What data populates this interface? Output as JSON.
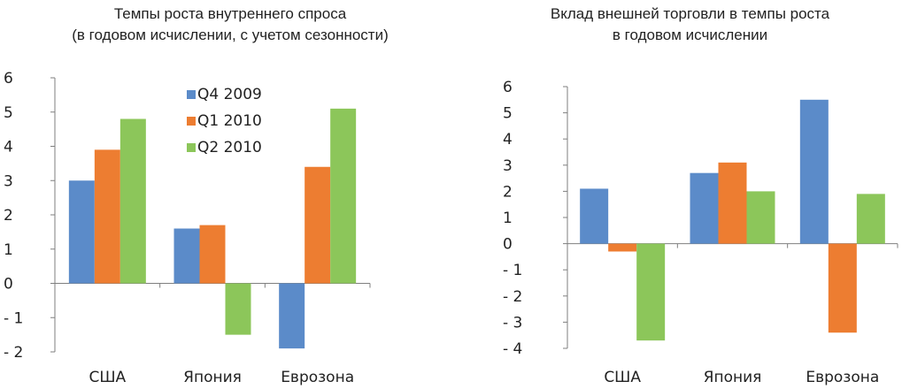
{
  "chart_data": [
    {
      "type": "bar",
      "title": "Темпы роста внутреннего спроса",
      "subtitle": "(в годовом исчислении, с учетом сезонности)",
      "categories": [
        "США",
        "Япония",
        "Еврозона"
      ],
      "series": [
        {
          "name": "Q4 2009",
          "color": "#5b8bc9",
          "values": [
            3.0,
            1.6,
            -1.9
          ]
        },
        {
          "name": "Q1 2010",
          "color": "#ed7d31",
          "values": [
            3.9,
            1.7,
            3.4
          ]
        },
        {
          "name": "Q2 2010",
          "color": "#8cc65a",
          "values": [
            4.8,
            -1.5,
            5.1
          ]
        }
      ],
      "ylim": [
        -2,
        6
      ],
      "yticks": [
        "6",
        "5",
        "4",
        "3",
        "2",
        "1",
        "0",
        "- 1",
        "- 2"
      ],
      "legend": "top-center",
      "grid": false
    },
    {
      "type": "bar",
      "title": "Вклад внешней торговли в темпы роста",
      "subtitle": "в годовом исчислении",
      "categories": [
        "США",
        "Япония",
        "Еврозона"
      ],
      "series": [
        {
          "color": "#5b8bc9",
          "values": [
            2.1,
            2.7,
            5.5
          ]
        },
        {
          "color": "#ed7d31",
          "values": [
            -0.3,
            3.1,
            -3.4
          ]
        },
        {
          "color": "#8cc65a",
          "values": [
            -3.7,
            2.0,
            1.9
          ]
        }
      ],
      "ylim": [
        -4,
        6
      ],
      "yticks": [
        "6",
        "5",
        "4",
        "3",
        "2",
        "1",
        "0",
        "- 1",
        "- 2",
        "- 3",
        "- 4"
      ],
      "grid": false
    }
  ]
}
